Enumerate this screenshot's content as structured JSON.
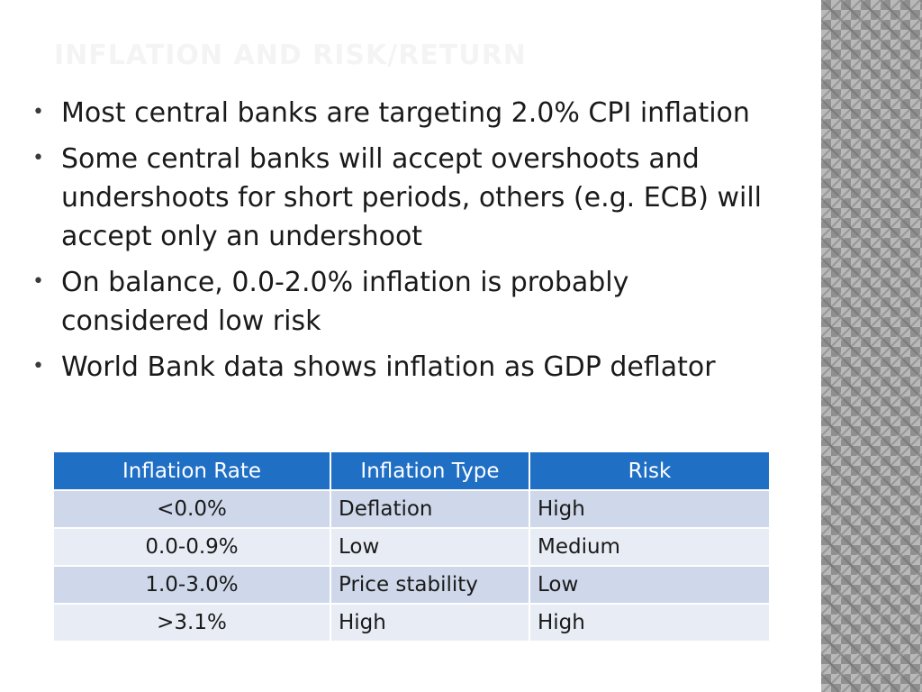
{
  "slide": {
    "title": "INFLATION AND RISK/RETURN",
    "bullets": [
      "Most central banks are targeting 2.0% CPI inflation",
      "Some central banks will accept overshoots and undershoots for short periods, others (e.g. ECB) will accept only an undershoot",
      "On balance, 0.0-2.0% inflation is probably considered low risk",
      "World Bank data shows inflation as GDP deflator"
    ],
    "bullet_glyph": "•"
  },
  "table": {
    "headers": [
      "Inflation Rate",
      "Inflation Type",
      "Risk"
    ],
    "rows": [
      [
        "<0.0%",
        "Deflation",
        "High"
      ],
      [
        "0.0-0.9%",
        "Low",
        "Medium"
      ],
      [
        "1.0-3.0%",
        "Price stability",
        "Low"
      ],
      [
        ">3.1%",
        "High",
        "High"
      ]
    ]
  },
  "colors": {
    "header_blue": "#1f6fc5",
    "row_odd": "#ced8ea",
    "row_even": "#e8edf5",
    "title_faint": "#f4f4f4"
  }
}
